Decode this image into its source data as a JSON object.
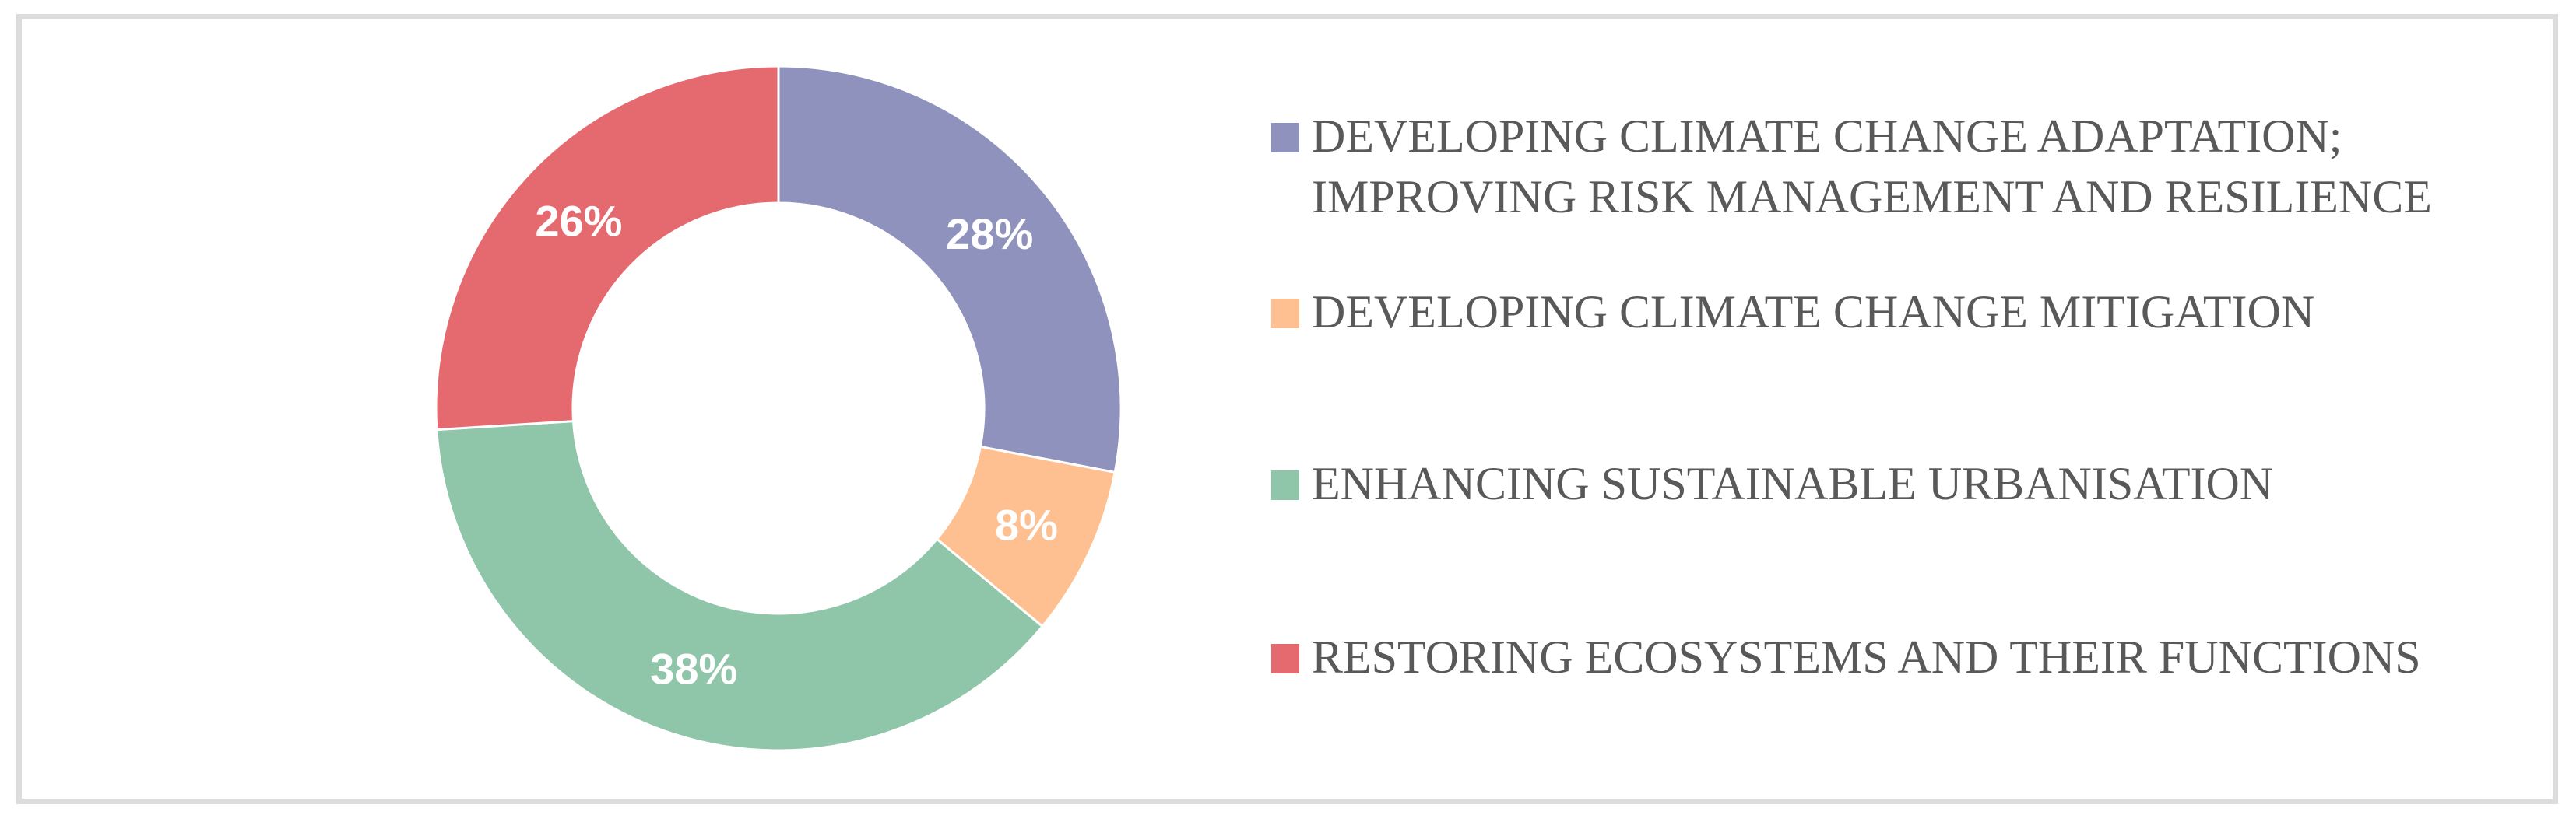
{
  "frame": {
    "border_color": "#DCDCDC",
    "background": "#FFFFFF"
  },
  "chart_data": {
    "type": "pie",
    "subtype": "donut",
    "title": "",
    "hole_ratio": 0.6,
    "start_angle_deg": 0,
    "direction": "clockwise",
    "legend_position": "right",
    "data_label_format": "percent",
    "data_label_color": "#FFFFFF",
    "legend_text_color": "#595959",
    "slices": [
      {
        "label": "DEVELOPING CLIMATE CHANGE ADAPTATION;\nIMPROVING RISK MANAGEMENT AND RESILIENCE",
        "value_pct": 28,
        "pct_label": "28%",
        "color": "#8F92BC"
      },
      {
        "label": "DEVELOPING CLIMATE CHANGE MITIGATION",
        "value_pct": 8,
        "pct_label": "8%",
        "color": "#FFC091"
      },
      {
        "label": "ENHANCING SUSTAINABLE URBANISATION",
        "value_pct": 38,
        "pct_label": "38%",
        "color": "#8FC5A8"
      },
      {
        "label": "RESTORING ECOSYSTEMS AND THEIR FUNCTIONS",
        "value_pct": 26,
        "pct_label": "26%",
        "color": "#E56A6F"
      }
    ]
  }
}
